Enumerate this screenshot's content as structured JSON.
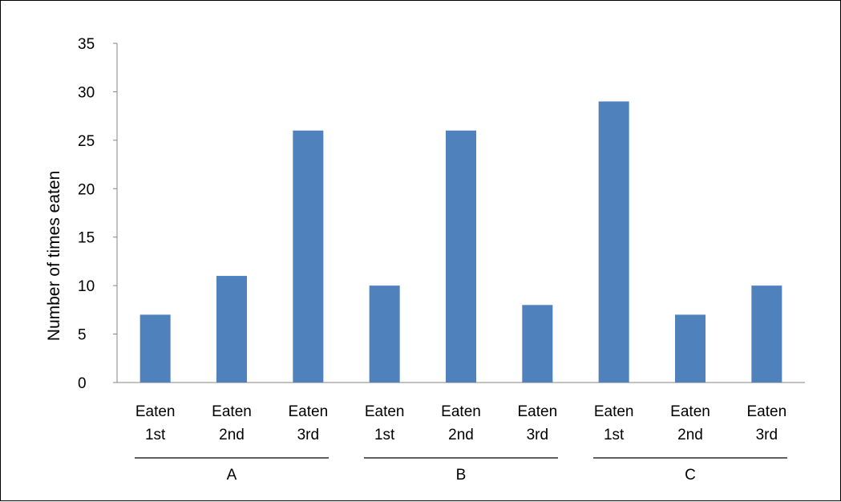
{
  "chart_data": {
    "type": "bar",
    "title": "",
    "xlabel": "",
    "ylabel": "Number of times eaten",
    "ylim": [
      0,
      35
    ],
    "yticks": [
      "0",
      "5",
      "10",
      "15",
      "20",
      "25",
      "30",
      "35"
    ],
    "grid": false,
    "legend": "none",
    "bar_color": "#4F81BD",
    "categories": [
      [
        "Eaten",
        "1st"
      ],
      [
        "Eaten",
        "2nd"
      ],
      [
        "Eaten",
        "3rd"
      ],
      [
        "Eaten",
        "1st"
      ],
      [
        "Eaten",
        "2nd"
      ],
      [
        "Eaten",
        "3rd"
      ],
      [
        "Eaten",
        "1st"
      ],
      [
        "Eaten",
        "2nd"
      ],
      [
        "Eaten",
        "3rd"
      ]
    ],
    "groups": [
      "A",
      "B",
      "C"
    ],
    "values": [
      7,
      11,
      26,
      10,
      26,
      8,
      29,
      7,
      10
    ]
  }
}
